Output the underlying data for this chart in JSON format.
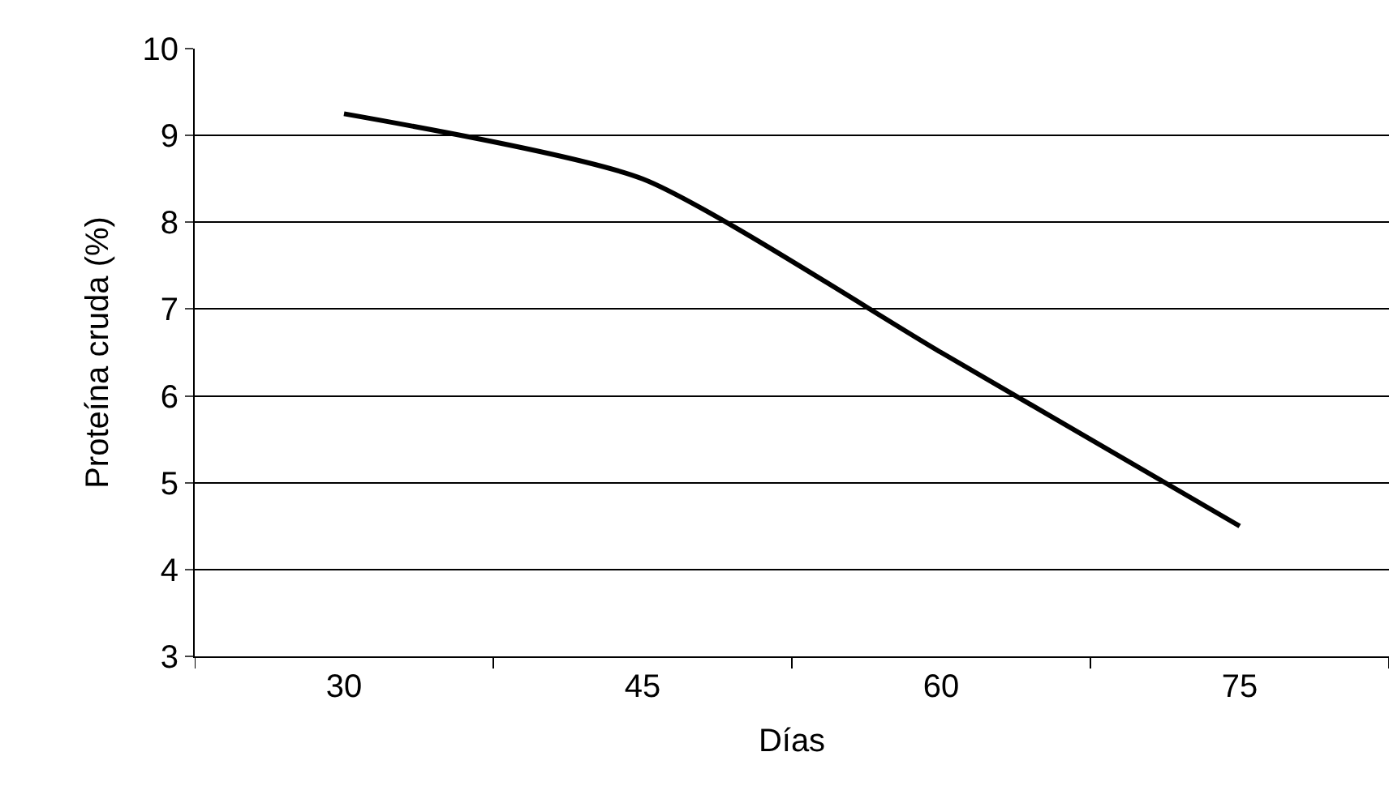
{
  "chart_data": {
    "type": "line",
    "xlabel": "Días",
    "ylabel": "Proteína cruda (%)",
    "categories": [
      "30",
      "45",
      "60",
      "75"
    ],
    "series": [
      {
        "color": "#000000",
        "values": [
          9.25,
          8.5,
          6.5,
          4.5
        ]
      }
    ],
    "ylim": [
      3,
      10
    ],
    "yticks": [
      3,
      4,
      5,
      6,
      7,
      8,
      9,
      10
    ],
    "grid": "y",
    "legend": false,
    "marker": "none",
    "line_style": "solid"
  }
}
